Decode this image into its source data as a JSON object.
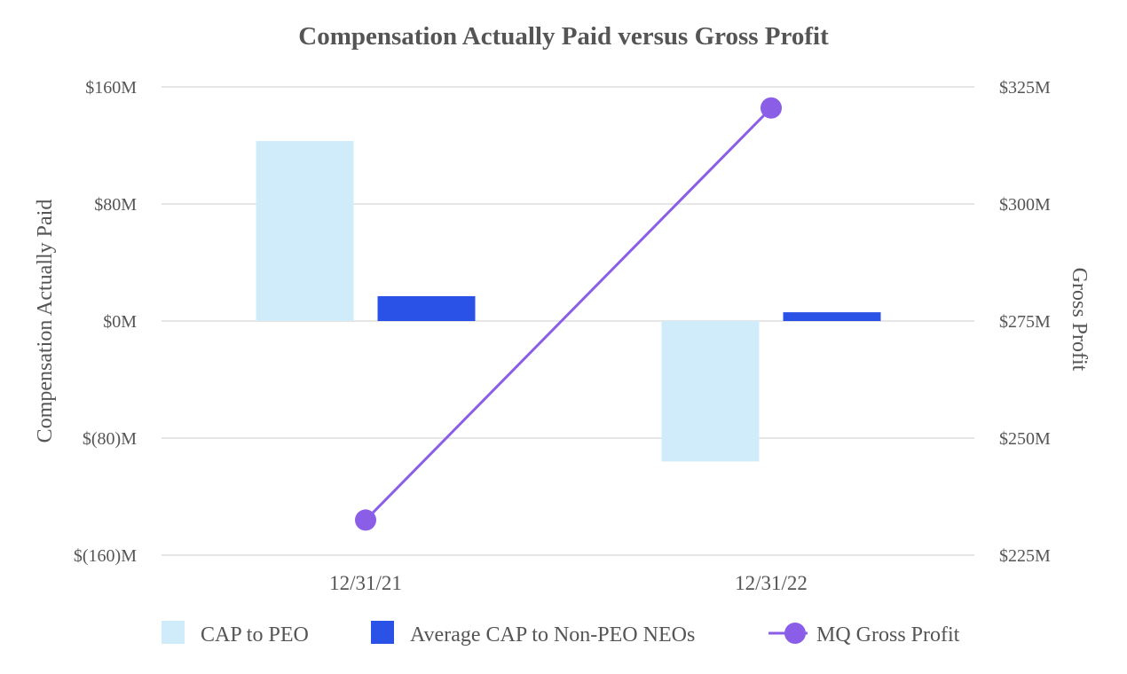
{
  "chart_data": {
    "type": "bar",
    "title": "Compensation Actually Paid versus Gross Profit",
    "categories": [
      "12/31/21",
      "12/31/22"
    ],
    "ylabel": "Compensation Actually Paid",
    "y2label": "Gross Profit",
    "ylim": [
      -160,
      160
    ],
    "y2lim": [
      225,
      325
    ],
    "y_ticks": [
      160,
      80,
      0,
      -80,
      -160
    ],
    "y_tick_labels": [
      "$160M",
      "$80M",
      "$0M",
      "$(80)M",
      "$(160)M"
    ],
    "y2_ticks": [
      325,
      300,
      275,
      250,
      225
    ],
    "y2_tick_labels": [
      "$325M",
      "$300M",
      "$275M",
      "$250M",
      "$225M"
    ],
    "grid": true,
    "legend_position": "bottom",
    "series": [
      {
        "name": "CAP to PEO",
        "type": "bar",
        "axis": "left",
        "color": "#d0ecfb",
        "values": [
          123,
          -96
        ]
      },
      {
        "name": "Average CAP to Non-PEO NEOs",
        "type": "bar",
        "axis": "left",
        "color": "#2b52e6",
        "values": [
          17,
          6
        ]
      },
      {
        "name": "MQ Gross Profit",
        "type": "line",
        "axis": "right",
        "color": "#8b5ee8",
        "values": [
          232.5,
          320.5
        ]
      }
    ]
  }
}
